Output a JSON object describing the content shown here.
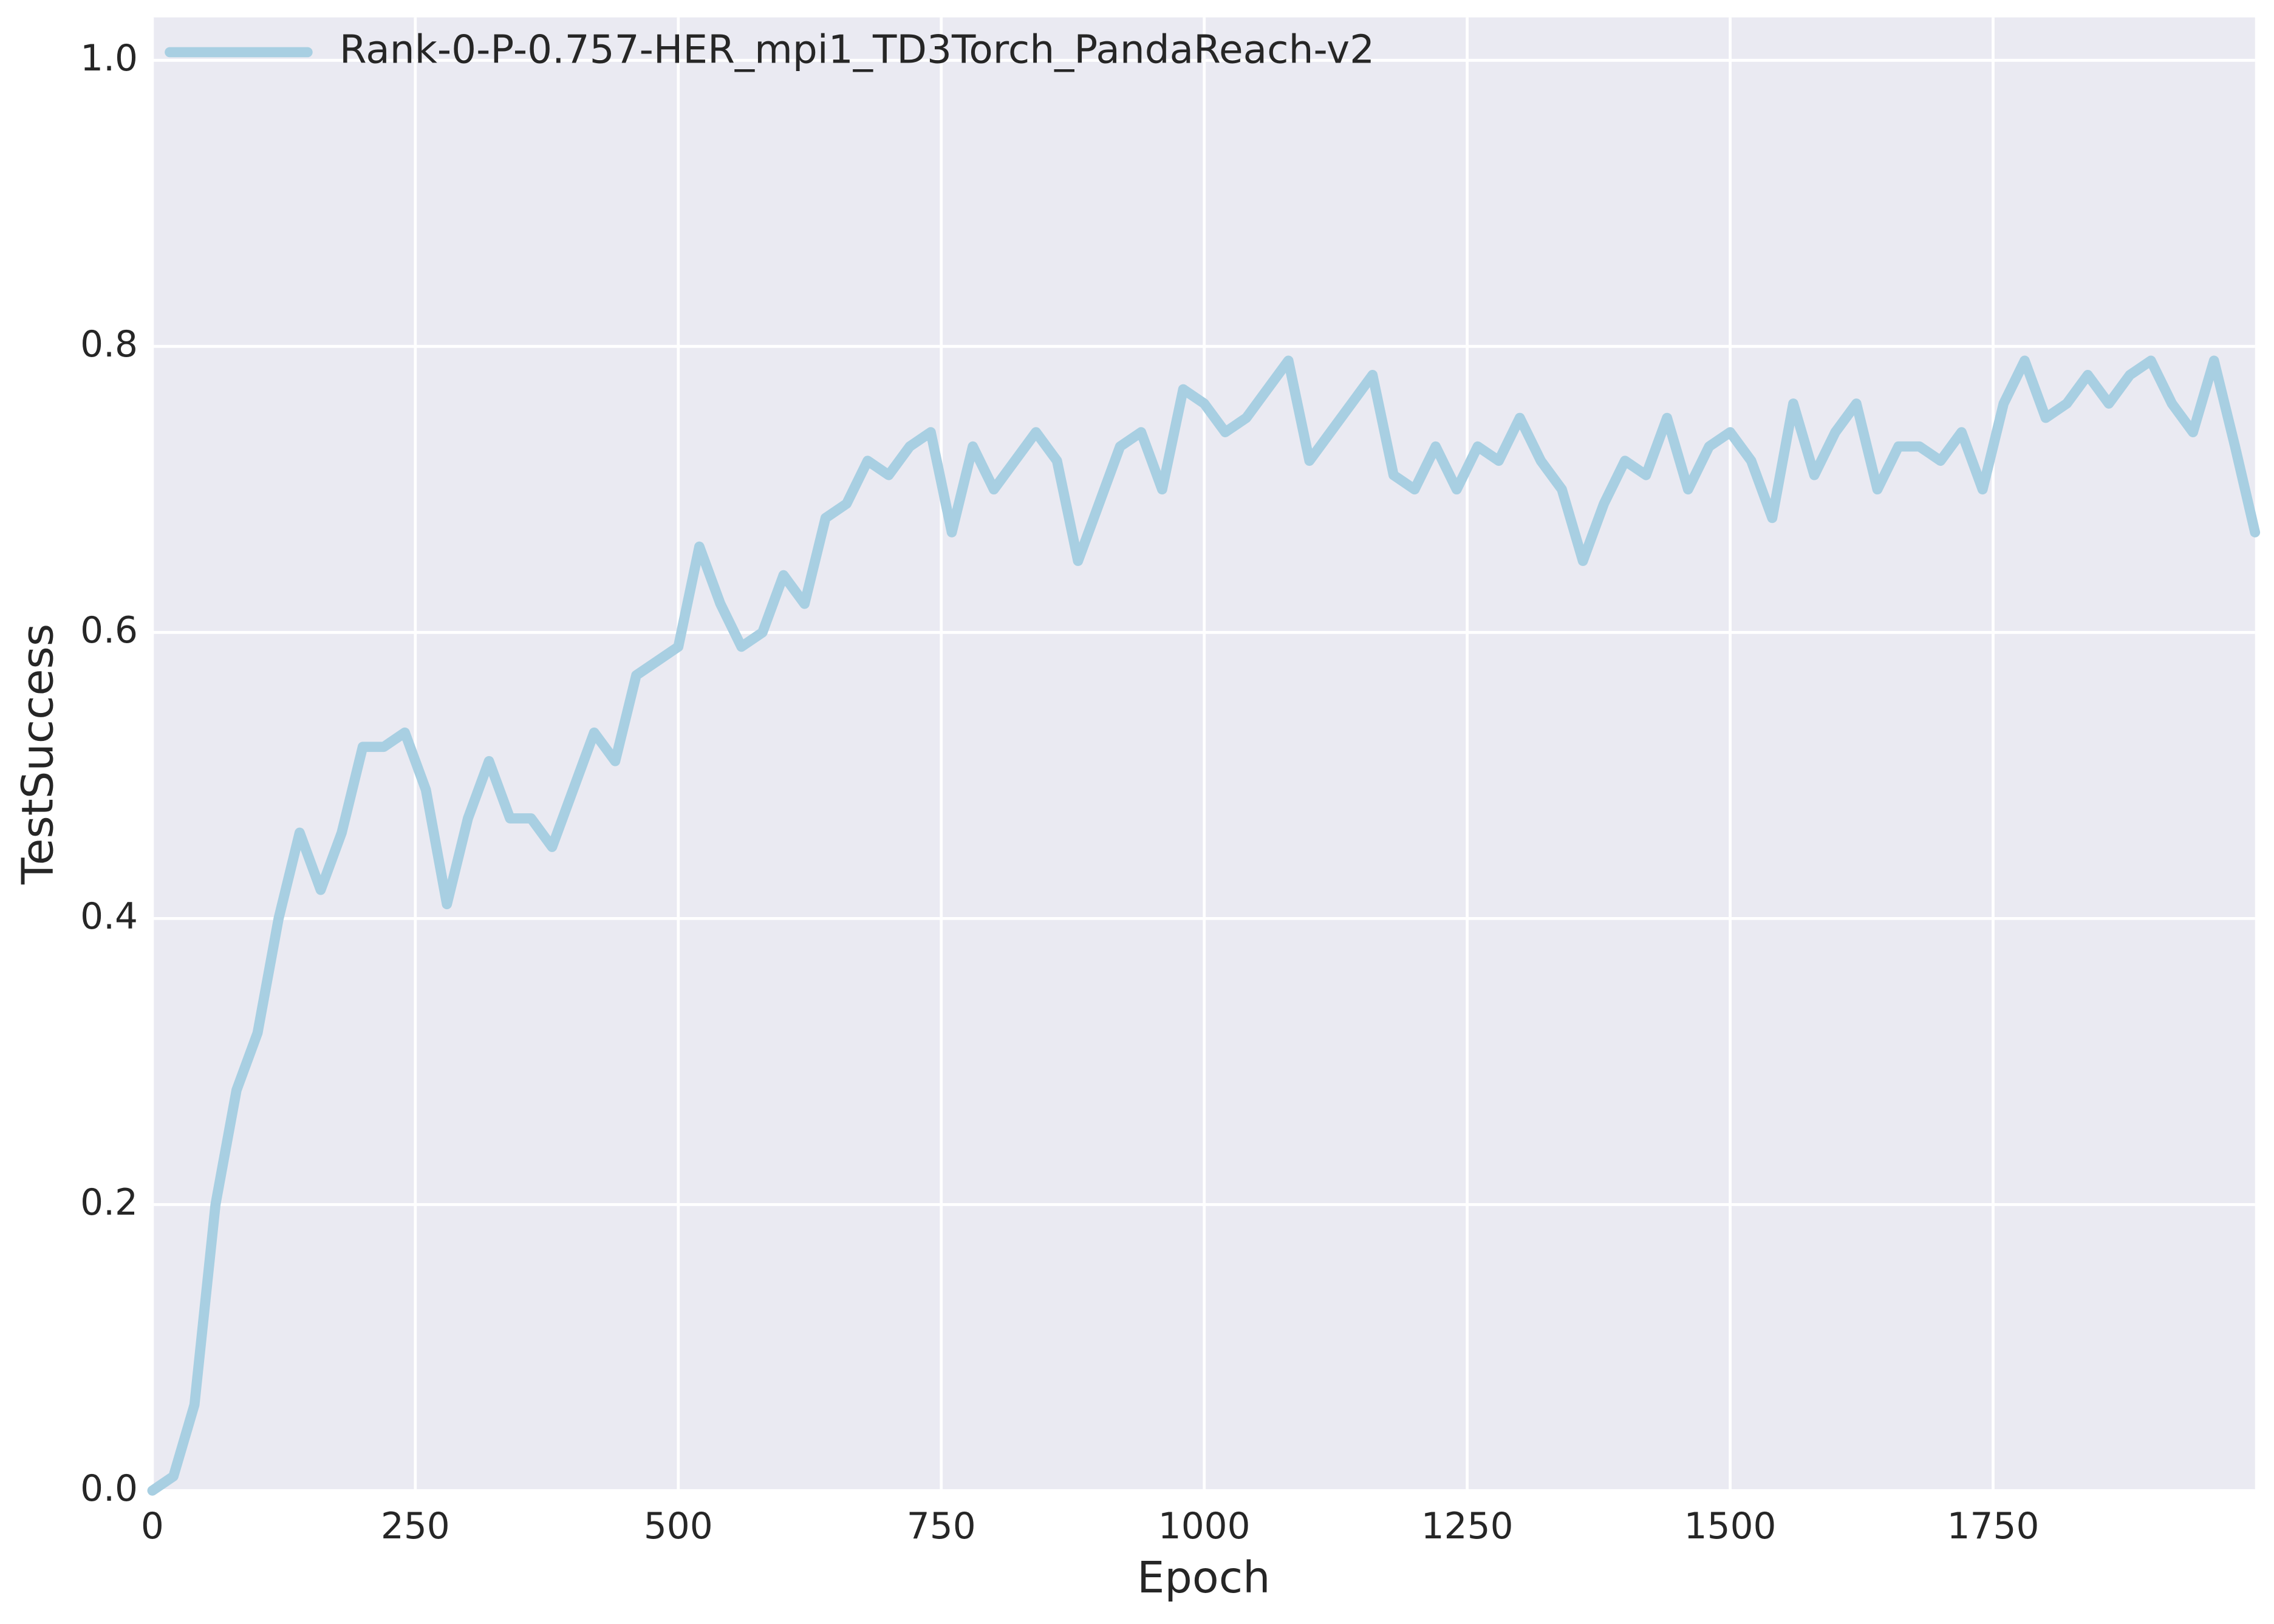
{
  "chart_data": {
    "type": "line",
    "xlabel": "Epoch",
    "ylabel": "TestSuccess",
    "x": [
      0,
      20,
      40,
      60,
      80,
      100,
      120,
      140,
      160,
      180,
      200,
      220,
      240,
      260,
      280,
      300,
      320,
      340,
      360,
      380,
      400,
      420,
      440,
      460,
      480,
      500,
      520,
      540,
      560,
      580,
      600,
      620,
      640,
      660,
      680,
      700,
      720,
      740,
      760,
      780,
      800,
      820,
      840,
      860,
      880,
      900,
      920,
      940,
      960,
      980,
      1000,
      1020,
      1040,
      1060,
      1080,
      1100,
      1120,
      1140,
      1160,
      1180,
      1200,
      1220,
      1240,
      1260,
      1280,
      1300,
      1320,
      1340,
      1360,
      1380,
      1400,
      1420,
      1440,
      1460,
      1480,
      1500,
      1520,
      1540,
      1560,
      1580,
      1600,
      1620,
      1640,
      1660,
      1680,
      1700,
      1720,
      1740,
      1760,
      1780,
      1800,
      1820,
      1840,
      1860,
      1880,
      1900,
      1920,
      1940,
      1960,
      1980,
      1999
    ],
    "series": [
      {
        "name": "Rank-0-P-0.757-HER_mpi1_TD3Torch_PandaReach-v2",
        "color": "#a8cfe2",
        "values": [
          0,
          0.01,
          0.06,
          0.2,
          0.28,
          0.32,
          0.4,
          0.46,
          0.42,
          0.46,
          0.52,
          0.52,
          0.53,
          0.49,
          0.41,
          0.47,
          0.51,
          0.47,
          0.47,
          0.45,
          0.49,
          0.53,
          0.51,
          0.57,
          0.58,
          0.59,
          0.66,
          0.62,
          0.59,
          0.6,
          0.64,
          0.62,
          0.68,
          0.69,
          0.72,
          0.71,
          0.73,
          0.74,
          0.67,
          0.73,
          0.7,
          0.72,
          0.74,
          0.72,
          0.65,
          0.69,
          0.73,
          0.74,
          0.7,
          0.77,
          0.76,
          0.74,
          0.75,
          0.77,
          0.79,
          0.72,
          0.74,
          0.76,
          0.78,
          0.71,
          0.7,
          0.73,
          0.7,
          0.73,
          0.72,
          0.75,
          0.72,
          0.7,
          0.65,
          0.69,
          0.72,
          0.71,
          0.75,
          0.7,
          0.73,
          0.74,
          0.72,
          0.68,
          0.76,
          0.71,
          0.74,
          0.76,
          0.7,
          0.73,
          0.73,
          0.72,
          0.74,
          0.7,
          0.76,
          0.79,
          0.75,
          0.76,
          0.78,
          0.76,
          0.78,
          0.79,
          0.76,
          0.74,
          0.79,
          0.73,
          0.67
        ]
      }
    ],
    "xlim": [
      0,
      1999
    ],
    "xticks": [
      0,
      250,
      500,
      750,
      1000,
      1250,
      1500,
      1750
    ],
    "ylim": [
      0,
      1.03
    ],
    "yticks": [
      {
        "value": 0,
        "label": "0.0"
      },
      0.2,
      0.4,
      0.6,
      0.8,
      {
        "value": 1,
        "label": "1.0"
      }
    ],
    "grid": true,
    "legend": "upper left"
  }
}
